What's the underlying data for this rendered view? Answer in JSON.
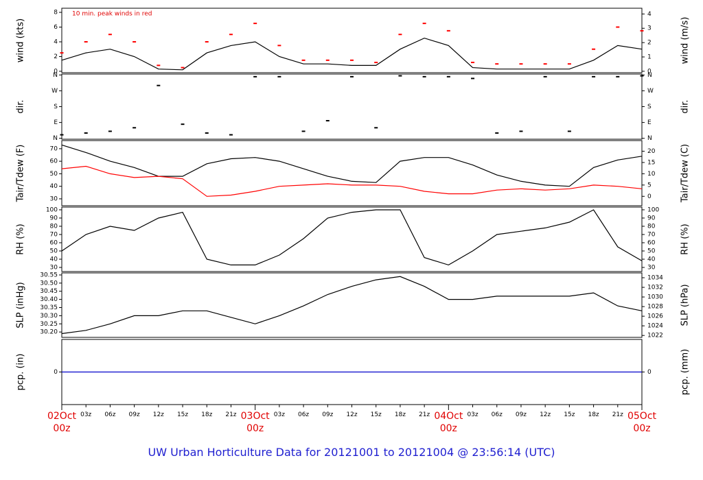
{
  "title": "UW Urban Horticulture Data for 20121001  to  20121004 @ 23:56:14  (UTC)",
  "chart_data": [
    {
      "type": "line",
      "ylabel": "wind (kts)",
      "y2label": "wind (m/s)",
      "annotation": "10 min. peak winds in red",
      "ylim": [
        -0.19,
        8.56
      ],
      "yticks": [
        0,
        2,
        4,
        6,
        8
      ],
      "y2lim": [
        -0.1,
        4.4
      ],
      "y2ticks": [
        0,
        1,
        2,
        3,
        4
      ],
      "series": [
        {
          "color": "#000000",
          "values": [
            1.5,
            2.5,
            3,
            2,
            0.3,
            0.2,
            2.5,
            3.5,
            4,
            2,
            1,
            1,
            0.8,
            0.8,
            3,
            4.5,
            3.5,
            0.5,
            0.3,
            0.3,
            0.3,
            0.3,
            1.5,
            3.5,
            3
          ]
        },
        {
          "type": "scatter",
          "color": "#ff0000",
          "values": [
            2.5,
            4,
            5,
            4,
            0.8,
            0.5,
            4,
            5,
            6.5,
            3.5,
            1.5,
            1.5,
            1.5,
            1.2,
            5,
            6.5,
            5.5,
            1.2,
            1,
            1,
            1,
            1,
            3,
            6,
            5.5
          ]
        }
      ]
    },
    {
      "type": "scatter",
      "ylabel": "dir.",
      "y2label": "dir.",
      "ylim": [
        -5,
        365
      ],
      "yticks": [
        {
          "value": 0,
          "label": "N"
        },
        {
          "value": 90,
          "label": "E"
        },
        {
          "value": 180,
          "label": "S"
        },
        {
          "value": 270,
          "label": "W"
        },
        {
          "value": 360,
          "label": "N"
        }
      ],
      "y2lim": [
        -5,
        365
      ],
      "y2ticks": [
        {
          "value": 0,
          "label": "N"
        },
        {
          "value": 90,
          "label": "E"
        },
        {
          "value": 180,
          "label": "S"
        },
        {
          "value": 270,
          "label": "W"
        },
        {
          "value": 360,
          "label": "N"
        }
      ],
      "series": [
        {
          "color": "#000000",
          "values": [
            20,
            30,
            40,
            60,
            300,
            80,
            30,
            20,
            350,
            350,
            40,
            100,
            350,
            60,
            355,
            350,
            350,
            340,
            30,
            40,
            350,
            40,
            350,
            350,
            355
          ]
        }
      ]
    },
    {
      "type": "line",
      "ylabel": "Tair/Tdew (F)",
      "y2label": "Tair/Tdew (C)",
      "ylim": [
        24.5,
        76.5
      ],
      "yticks": [
        30,
        40,
        50,
        60,
        70
      ],
      "y2lim": [
        -4.17,
        24.72
      ],
      "y2ticks": [
        0,
        5,
        10,
        15,
        20
      ],
      "series": [
        {
          "color": "#000000",
          "values": [
            73,
            67,
            60,
            55,
            48,
            48,
            58,
            62,
            63,
            60,
            54,
            48,
            44,
            43,
            60,
            63,
            63,
            57,
            49,
            44,
            41,
            40,
            55,
            61,
            64
          ]
        },
        {
          "color": "#ff0000",
          "values": [
            54,
            56,
            50,
            47,
            48,
            46,
            32,
            33,
            36,
            40,
            41,
            42,
            41,
            41,
            40,
            36,
            34,
            34,
            37,
            38,
            37,
            38,
            41,
            40,
            38
          ]
        }
      ]
    },
    {
      "type": "line",
      "ylabel": "RH (%)",
      "y2label": "RH (%)",
      "ylim": [
        25,
        103.3
      ],
      "yticks": [
        30,
        40,
        50,
        60,
        70,
        80,
        90,
        100
      ],
      "y2lim": [
        25,
        103.3
      ],
      "y2ticks": [
        30,
        40,
        50,
        60,
        70,
        80,
        90,
        100
      ],
      "series": [
        {
          "color": "#000000",
          "values": [
            50,
            70,
            80,
            75,
            90,
            97,
            40,
            33,
            33,
            45,
            65,
            90,
            97,
            100,
            100,
            42,
            33,
            50,
            70,
            74,
            78,
            85,
            100,
            55,
            38
          ]
        }
      ]
    },
    {
      "type": "line",
      "ylabel": "SLP (inHg)",
      "y2label": "SLP (hPa)",
      "ylim": [
        30.167,
        30.5625
      ],
      "yticks": [
        {
          "value": 30.2,
          "label": "30.20"
        },
        30.25,
        {
          "value": 30.3,
          "label": "30.30"
        },
        30.35,
        {
          "value": 30.4,
          "label": "30.40"
        },
        30.45,
        {
          "value": 30.5,
          "label": "30.50"
        },
        30.55
      ],
      "y2lim": [
        1021.6,
        1035.0
      ],
      "y2ticks": [
        1022,
        1024,
        1026,
        1028,
        1030,
        1032,
        1034
      ],
      "series": [
        {
          "color": "#000000",
          "values": [
            30.19,
            30.21,
            30.25,
            30.3,
            30.3,
            30.33,
            30.33,
            30.29,
            30.25,
            30.3,
            30.36,
            30.43,
            30.48,
            30.52,
            30.54,
            30.48,
            30.4,
            30.4,
            30.42,
            30.42,
            30.42,
            30.42,
            30.44,
            30.36,
            30.33
          ]
        }
      ]
    },
    {
      "type": "line",
      "ylabel": "pcp. (in)",
      "y2label": "pcp. (mm)",
      "ylim": [
        -1,
        1
      ],
      "yticks": [
        0
      ],
      "y2lim": [
        -1,
        1
      ],
      "y2ticks": [
        0
      ],
      "categories": [
        "02Oct\n00z",
        "03z",
        "06z",
        "09z",
        "12z",
        "15z",
        "18z",
        "21z",
        "03Oct\n00z",
        "03z",
        "06z",
        "09z",
        "12z",
        "15z",
        "18z",
        "21z",
        "04Oct\n00z",
        "03z",
        "06z",
        "09z",
        "12z",
        "15z",
        "18z",
        "21z",
        "05Oct\n00z"
      ],
      "series": [
        {
          "color": "#0000cc",
          "values": [
            0,
            0,
            0,
            0,
            0,
            0,
            0,
            0,
            0,
            0,
            0,
            0,
            0,
            0,
            0,
            0,
            0,
            0,
            0,
            0,
            0,
            0,
            0,
            0,
            0
          ]
        }
      ]
    }
  ]
}
